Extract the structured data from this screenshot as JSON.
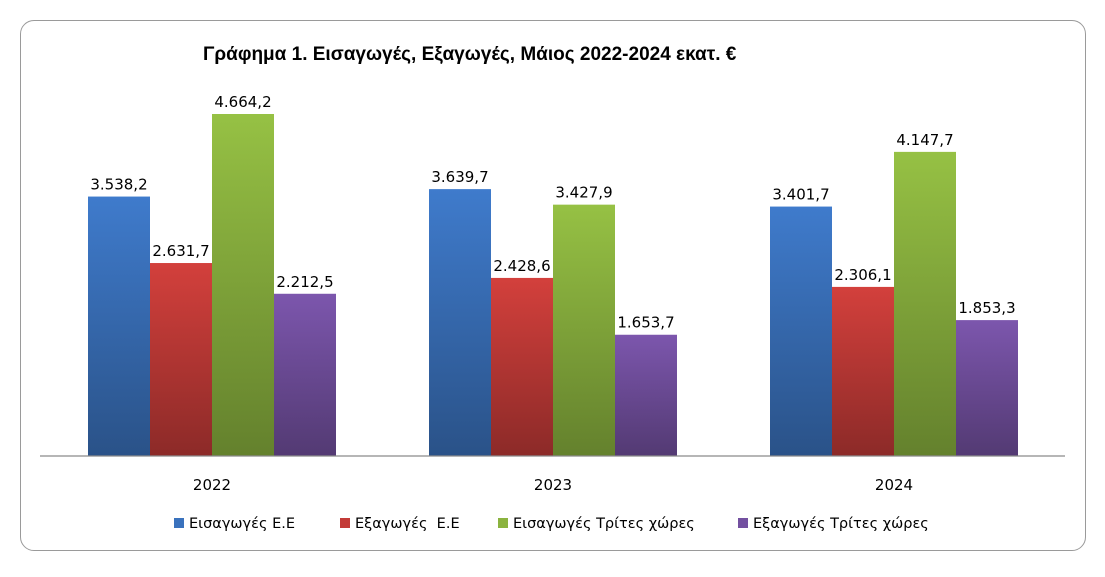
{
  "chart_data": {
    "type": "bar",
    "title": "Γράφημα 1. Εισαγωγές, Εξαγωγές, Μάιος 2022-2024 εκατ. €",
    "categories": [
      "2022",
      "2023",
      "2024"
    ],
    "series": [
      {
        "name": "Εισαγωγές Ε.Ε",
        "values": [
          3538.2,
          3639.7,
          3401.7
        ],
        "labels": [
          "3.538,2",
          "3.639,7",
          "3.401,7"
        ],
        "color": "#3a72bd"
      },
      {
        "name": "Εξαγωγές  Ε.Ε",
        "values": [
          2631.7,
          2428.6,
          2306.1
        ],
        "labels": [
          "2.631,7",
          "2.428,6",
          "2.306,1"
        ],
        "color": "#c33b38"
      },
      {
        "name": "Εισαγωγές Τρίτες χώρες",
        "values": [
          4664.2,
          3427.9,
          4147.7
        ],
        "labels": [
          "4.664,2",
          "3.427,9",
          "4.147,7"
        ],
        "color": "#8bb33f"
      },
      {
        "name": "Εξαγωγές Τρίτες χώρες",
        "values": [
          2212.5,
          1653.7,
          1853.3
        ],
        "labels": [
          "2.212,5",
          "1.653,7",
          "1.853,3"
        ],
        "color": "#7350a0"
      }
    ],
    "ylim": [
      0,
      5000
    ],
    "legend": "bottom",
    "grid": false
  }
}
